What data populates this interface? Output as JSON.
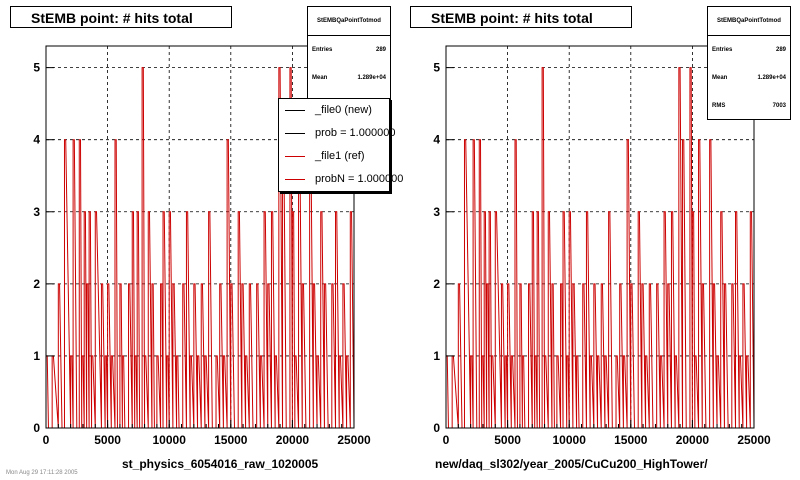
{
  "footer": "Mon Aug 29 17:11:28 2005",
  "chart_data": [
    {
      "type": "line",
      "title": "StEMB point: # hits total",
      "xlabel": "st_physics_6054016_raw_1020005",
      "ylabel": "",
      "xlim": [
        0,
        25000
      ],
      "ylim": [
        0,
        5.3
      ],
      "xticks": [
        "0",
        "5000",
        "10000",
        "15000",
        "20000",
        "25000"
      ],
      "yticks": [
        "0",
        "1",
        "2",
        "3",
        "4",
        "5"
      ],
      "grid": true,
      "bin_width": 100,
      "line_color": "#cc0000",
      "stats": {
        "title": "StEMBQaPointTotmod",
        "entries_label": "Entries",
        "entries": "289",
        "mean_label": "Mean",
        "mean": "1.289e+04"
      },
      "legend": [
        {
          "label": "_file0 (new)",
          "color": "#000000"
        },
        {
          "label": "prob = 1.000000",
          "color": "#000000"
        },
        {
          "label": "_file1 (ref)",
          "color": "#cc0000"
        },
        {
          "label": "probN = 1.000000",
          "color": "#cc0000"
        }
      ],
      "x": [
        0,
        200,
        500,
        1000,
        1300,
        1500,
        2000,
        2200,
        2500,
        2700,
        2900,
        3100,
        3300,
        3500,
        3700,
        4000,
        4500,
        4800,
        5000,
        5300,
        5600,
        5800,
        6000,
        6200,
        6400,
        6700,
        7000,
        7200,
        7400,
        7600,
        7800,
        8000,
        8300,
        8600,
        8800,
        9000,
        9300,
        9500,
        9800,
        10000,
        10300,
        10600,
        10800,
        11100,
        11400,
        11700,
        12000,
        12300,
        12600,
        12900,
        13200,
        13500,
        13800,
        14100,
        14400,
        14700,
        15000,
        15300,
        15600,
        15900,
        16200,
        16500,
        16800,
        17100,
        17400,
        17700,
        18000,
        18300,
        18600,
        18900,
        19200,
        19500,
        19800,
        20000,
        20200,
        20500,
        20800,
        21100,
        21400,
        21700,
        22000,
        22300,
        22600,
        22900,
        23200,
        23500,
        23800,
        24100,
        24400,
        24700,
        25000
      ],
      "values": [
        1,
        0,
        1,
        2,
        0,
        4,
        1,
        4,
        0,
        4,
        1,
        3,
        2,
        3,
        1,
        3,
        2,
        1,
        2,
        1,
        4,
        0,
        2,
        1,
        0,
        2,
        3,
        1,
        3,
        0,
        5,
        1,
        3,
        2,
        0,
        1,
        2,
        3,
        1,
        3,
        2,
        1,
        0,
        2,
        3,
        1,
        2,
        1,
        2,
        1,
        3,
        0,
        1,
        2,
        1,
        4,
        2,
        0,
        3,
        2,
        1,
        2,
        0,
        2,
        1,
        3,
        2,
        3,
        1,
        5,
        4,
        0,
        5,
        3,
        1,
        4,
        2,
        0,
        4,
        2,
        1,
        3,
        2,
        0,
        2,
        3,
        1,
        2,
        1,
        3,
        3
      ]
    },
    {
      "type": "line",
      "title": "StEMB point: # hits total",
      "xlabel": "new/daq_sl302/year_2005/CuCu200_HighTower/",
      "ylabel": "",
      "xlim": [
        0,
        25000
      ],
      "ylim": [
        0,
        5.3
      ],
      "xticks": [
        "0",
        "5000",
        "10000",
        "15000",
        "20000",
        "25000"
      ],
      "yticks": [
        "0",
        "1",
        "2",
        "3",
        "4",
        "5"
      ],
      "grid": true,
      "bin_width": 100,
      "line_color": "#cc0000",
      "stats": {
        "title": "StEMBQaPointTotmod",
        "entries_label": "Entries",
        "entries": "289",
        "mean_label": "Mean",
        "mean": "1.289e+04",
        "rms_label": "RMS",
        "rms": "7003"
      },
      "x": [
        0,
        200,
        500,
        1000,
        1300,
        1500,
        2000,
        2200,
        2500,
        2700,
        2900,
        3100,
        3300,
        3500,
        3700,
        4000,
        4500,
        4800,
        5000,
        5300,
        5600,
        5800,
        6000,
        6200,
        6400,
        6700,
        7000,
        7200,
        7400,
        7600,
        7800,
        8000,
        8300,
        8600,
        8800,
        9000,
        9300,
        9500,
        9800,
        10000,
        10300,
        10600,
        10800,
        11100,
        11400,
        11700,
        12000,
        12300,
        12600,
        12900,
        13200,
        13500,
        13800,
        14100,
        14400,
        14700,
        15000,
        15300,
        15600,
        15900,
        16200,
        16500,
        16800,
        17100,
        17400,
        17700,
        18000,
        18300,
        18600,
        18900,
        19200,
        19500,
        19800,
        20000,
        20200,
        20500,
        20800,
        21100,
        21400,
        21700,
        22000,
        22300,
        22600,
        22900,
        23200,
        23500,
        23800,
        24100,
        24400,
        24700,
        25000
      ],
      "values": [
        1,
        0,
        1,
        2,
        0,
        4,
        1,
        4,
        0,
        4,
        1,
        3,
        2,
        3,
        1,
        3,
        2,
        1,
        2,
        1,
        4,
        0,
        2,
        1,
        0,
        2,
        3,
        1,
        3,
        0,
        5,
        1,
        3,
        2,
        0,
        1,
        2,
        3,
        1,
        3,
        2,
        1,
        0,
        2,
        3,
        1,
        2,
        1,
        2,
        1,
        3,
        0,
        1,
        2,
        1,
        4,
        2,
        0,
        3,
        2,
        1,
        2,
        0,
        2,
        1,
        3,
        2,
        3,
        1,
        5,
        4,
        0,
        5,
        3,
        1,
        4,
        2,
        0,
        4,
        2,
        1,
        3,
        2,
        0,
        2,
        3,
        1,
        2,
        1,
        3,
        3
      ]
    }
  ]
}
